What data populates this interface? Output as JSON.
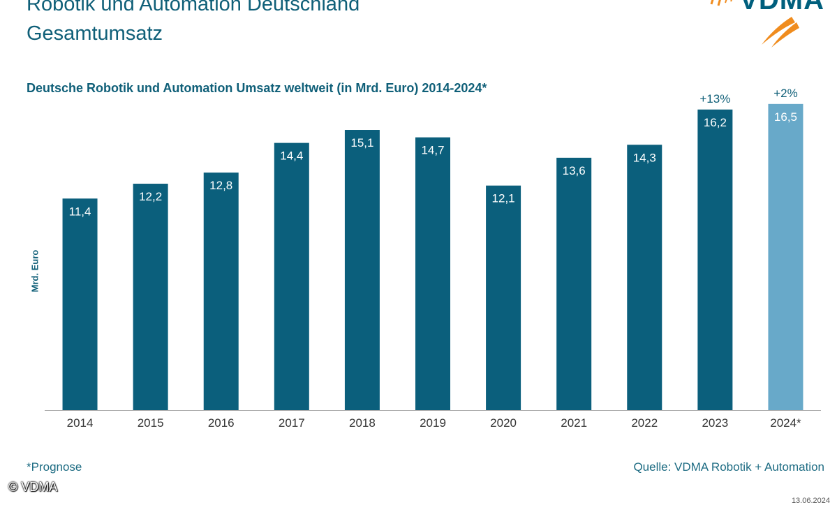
{
  "header": {
    "title_line1": "Robotik und Automation Deutschland",
    "title_line2": "Gesamtumsatz"
  },
  "logo": {
    "text": "VDMA"
  },
  "colors": {
    "title": "#0f5f78",
    "bar": "#0b5f7c",
    "bar_forecast": "#68a9c9",
    "swoosh": "#f08c1e",
    "axis": "#9a9a9a",
    "tick_text": "#333333"
  },
  "chart_data": {
    "type": "bar",
    "title": "Deutsche Robotik und Automation Umsatz weltweit (in Mrd. Euro) 2014-2024*",
    "xlabel": "",
    "ylabel": "Mrd. Euro",
    "ylim": [
      0,
      18
    ],
    "grid": false,
    "categories": [
      "2014",
      "2015",
      "2016",
      "2017",
      "2018",
      "2019",
      "2020",
      "2021",
      "2022",
      "2023",
      "2024*"
    ],
    "values": [
      11.4,
      12.2,
      12.8,
      14.4,
      15.1,
      14.7,
      12.1,
      13.6,
      14.3,
      16.2,
      16.5
    ],
    "value_labels": [
      "11,4",
      "12,2",
      "12,8",
      "14,4",
      "15,1",
      "14,7",
      "12,1",
      "13,6",
      "14,3",
      "16,2",
      "16,5"
    ],
    "forecast": [
      false,
      false,
      false,
      false,
      false,
      false,
      false,
      false,
      false,
      false,
      true
    ],
    "annotations": [
      {
        "category": "2023",
        "text": "+13%"
      },
      {
        "category": "2024*",
        "text": "+2%"
      }
    ]
  },
  "footer": {
    "footnote": "*Prognose",
    "source": "Quelle: VDMA Robotik + Automation",
    "copyright": "© VDMA",
    "date": "13.06.2024"
  }
}
